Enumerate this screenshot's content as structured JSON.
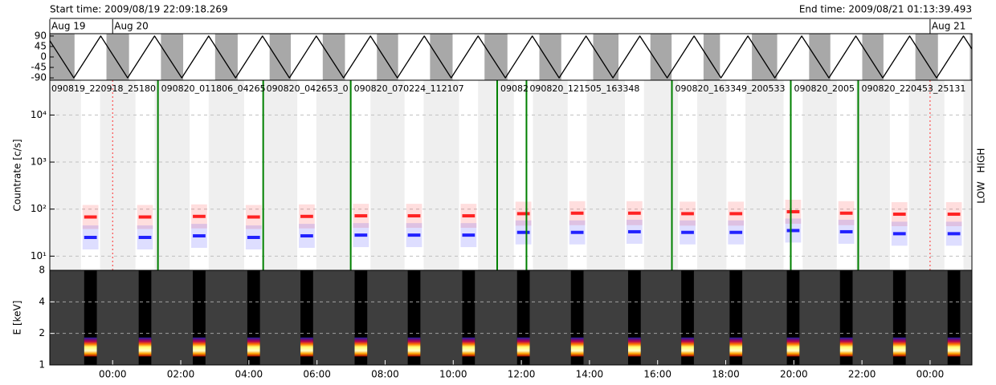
{
  "header": {
    "start": "Start time: 2009/08/19 22:09:18.269",
    "end": "End time: 2009/08/21 01:13:39.493"
  },
  "chart_data": [
    {
      "type": "line",
      "xlim": [
        -1.845,
        25.228
      ],
      "ylim": [
        -100,
        100
      ],
      "yticks": [
        90,
        45,
        0,
        -45,
        -90
      ],
      "color": "#000000",
      "day_labels": [
        "Aug 19",
        "Aug 20",
        "Aug 21"
      ],
      "day_starts": [
        -1.845,
        0,
        24
      ],
      "x": [
        -1.845,
        -1.14,
        -0.35,
        0.44,
        1.23,
        2.03,
        2.82,
        3.61,
        4.4,
        5.19,
        5.98,
        6.78,
        7.57,
        8.36,
        9.15,
        9.94,
        10.73,
        11.53,
        12.32,
        13.11,
        13.9,
        14.69,
        15.48,
        16.28,
        17.07,
        17.86,
        18.65,
        19.44,
        20.23,
        21.03,
        21.82,
        22.61,
        23.4,
        24.19,
        24.98,
        25.228
      ],
      "values": [
        70,
        -90,
        90,
        -90,
        90,
        -90,
        90,
        -90,
        90,
        -90,
        90,
        -90,
        90,
        -90,
        90,
        -90,
        90,
        -90,
        90,
        -90,
        90,
        -90,
        90,
        -90,
        90,
        -90,
        90,
        -90,
        90,
        -90,
        90,
        -90,
        90,
        -90,
        90,
        34
      ]
    },
    {
      "type": "scatter",
      "ylabel": "Countrate [c/s]",
      "log": true,
      "grid": true,
      "xlim": [
        -1.845,
        25.228
      ],
      "ylim": [
        5,
        55000
      ],
      "yticks": [
        {
          "value": 10,
          "label": "10¹"
        },
        {
          "value": 100,
          "label": "10²"
        },
        {
          "value": 1000,
          "label": "10³"
        },
        {
          "value": 10000,
          "label": "10⁴"
        }
      ],
      "x": [
        -0.65,
        0.95,
        2.54,
        4.14,
        5.7,
        7.29,
        8.85,
        10.45,
        12.06,
        13.64,
        15.32,
        16.88,
        18.3,
        19.98,
        21.54,
        23.1,
        24.7
      ],
      "series": [
        {
          "name": "LOW",
          "color": "#ff0000",
          "values": [
            68,
            68,
            70,
            68,
            70,
            72,
            72,
            72,
            80,
            82,
            82,
            80,
            80,
            88,
            82,
            78,
            78
          ]
        },
        {
          "name": "HIGH",
          "color": "#0000ff",
          "values": [
            25,
            25,
            27,
            25,
            27,
            28,
            28,
            28,
            32,
            32,
            33,
            32,
            32,
            35,
            33,
            30,
            30
          ]
        }
      ],
      "observation_intervals": [
        [
          -0.93,
          -0.37
        ],
        [
          0.67,
          1.23
        ],
        [
          2.26,
          2.82
        ],
        [
          3.86,
          4.42
        ],
        [
          5.42,
          5.98
        ],
        [
          7.01,
          7.57
        ],
        [
          8.57,
          9.13
        ],
        [
          10.17,
          10.73
        ],
        [
          11.78,
          12.34
        ],
        [
          13.36,
          13.92
        ],
        [
          15.04,
          15.6
        ],
        [
          16.6,
          17.16
        ],
        [
          18.02,
          18.58
        ],
        [
          19.7,
          20.26
        ],
        [
          21.26,
          21.82
        ],
        [
          22.82,
          23.38
        ],
        [
          24.42,
          24.98
        ]
      ],
      "file_boundaries": [
        1.33,
        4.42,
        6.99,
        11.29,
        12.15,
        16.42,
        19.91,
        21.89
      ],
      "file_labels": [
        "090819_220918_25180",
        "090820_011806_04265",
        "090820_042653_0",
        "090820_070224_112107",
        "09082",
        "090820_121505_163348",
        "090820_163349_200533",
        "090820_2005",
        "090820_220453_25131"
      ],
      "day_boundaries": [
        0,
        24
      ]
    },
    {
      "type": "spectrogram",
      "ylabel": "E [keV]",
      "log": true,
      "grid": true,
      "xlim": [
        -1.845,
        25.228
      ],
      "ylim": [
        1,
        8
      ],
      "yticks": [
        1,
        2,
        4,
        8
      ],
      "xticks": [
        {
          "value": 0,
          "label": "00:00"
        },
        {
          "value": 2,
          "label": "02:00"
        },
        {
          "value": 4,
          "label": "04:00"
        },
        {
          "value": 6,
          "label": "06:00"
        },
        {
          "value": 8,
          "label": "08:00"
        },
        {
          "value": 10,
          "label": "10:00"
        },
        {
          "value": 12,
          "label": "12:00"
        },
        {
          "value": 14,
          "label": "14:00"
        },
        {
          "value": 16,
          "label": "16:00"
        },
        {
          "value": 18,
          "label": "18:00"
        },
        {
          "value": 20,
          "label": "20:00"
        },
        {
          "value": 22,
          "label": "22:00"
        },
        {
          "value": 24,
          "label": "00:00"
        }
      ]
    }
  ]
}
